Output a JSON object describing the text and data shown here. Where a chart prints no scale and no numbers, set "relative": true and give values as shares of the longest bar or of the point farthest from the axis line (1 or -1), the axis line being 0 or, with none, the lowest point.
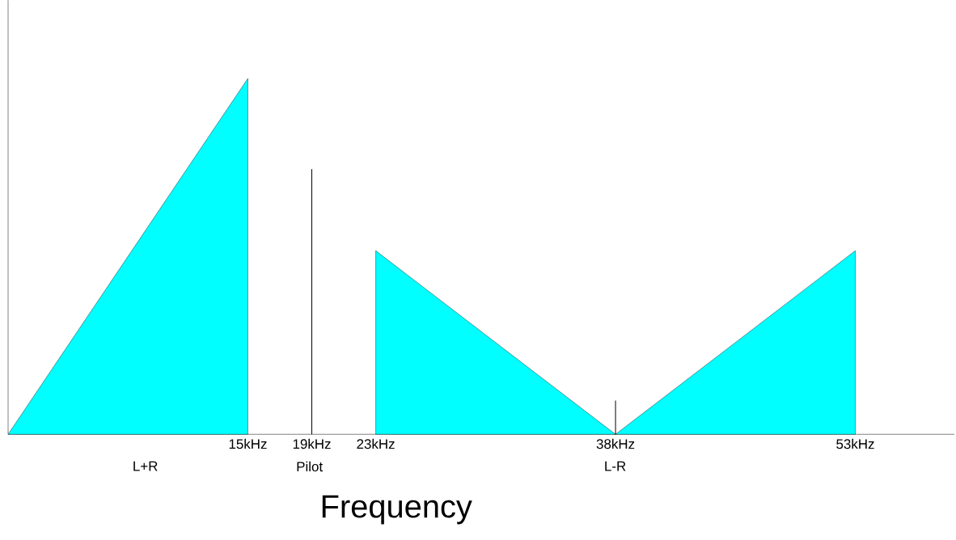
{
  "chart_data": {
    "type": "area",
    "relative": true,
    "xlabel": "Frequency",
    "xlim": [
      0,
      59.2
    ],
    "xticks": [
      {
        "value": 15,
        "label": "15kHz"
      },
      {
        "value": 19,
        "label": "19kHz"
      },
      {
        "value": 23,
        "label": "23kHz"
      },
      {
        "value": 38,
        "label": "38kHz"
      },
      {
        "value": 53,
        "label": "53kHz"
      }
    ],
    "series": [
      {
        "color": "#00ffff",
        "x": [
          0,
          15,
          15
        ],
        "values": [
          0,
          1,
          0
        ]
      },
      {
        "type": "bar",
        "color": "#000000",
        "x": [
          19
        ],
        "values": [
          0.745
        ]
      },
      {
        "color": "#00ffff",
        "x": [
          23,
          23,
          38
        ],
        "values": [
          0,
          0.516,
          0
        ]
      },
      {
        "color": "#00ffff",
        "x": [
          38,
          53,
          53
        ],
        "values": [
          0,
          0.516,
          0
        ]
      },
      {
        "type": "bar",
        "color": "#000000",
        "x": [
          38
        ],
        "values": [
          0.095
        ]
      }
    ],
    "annotations": [
      "L+R",
      "Pilot",
      "L-R"
    ]
  }
}
